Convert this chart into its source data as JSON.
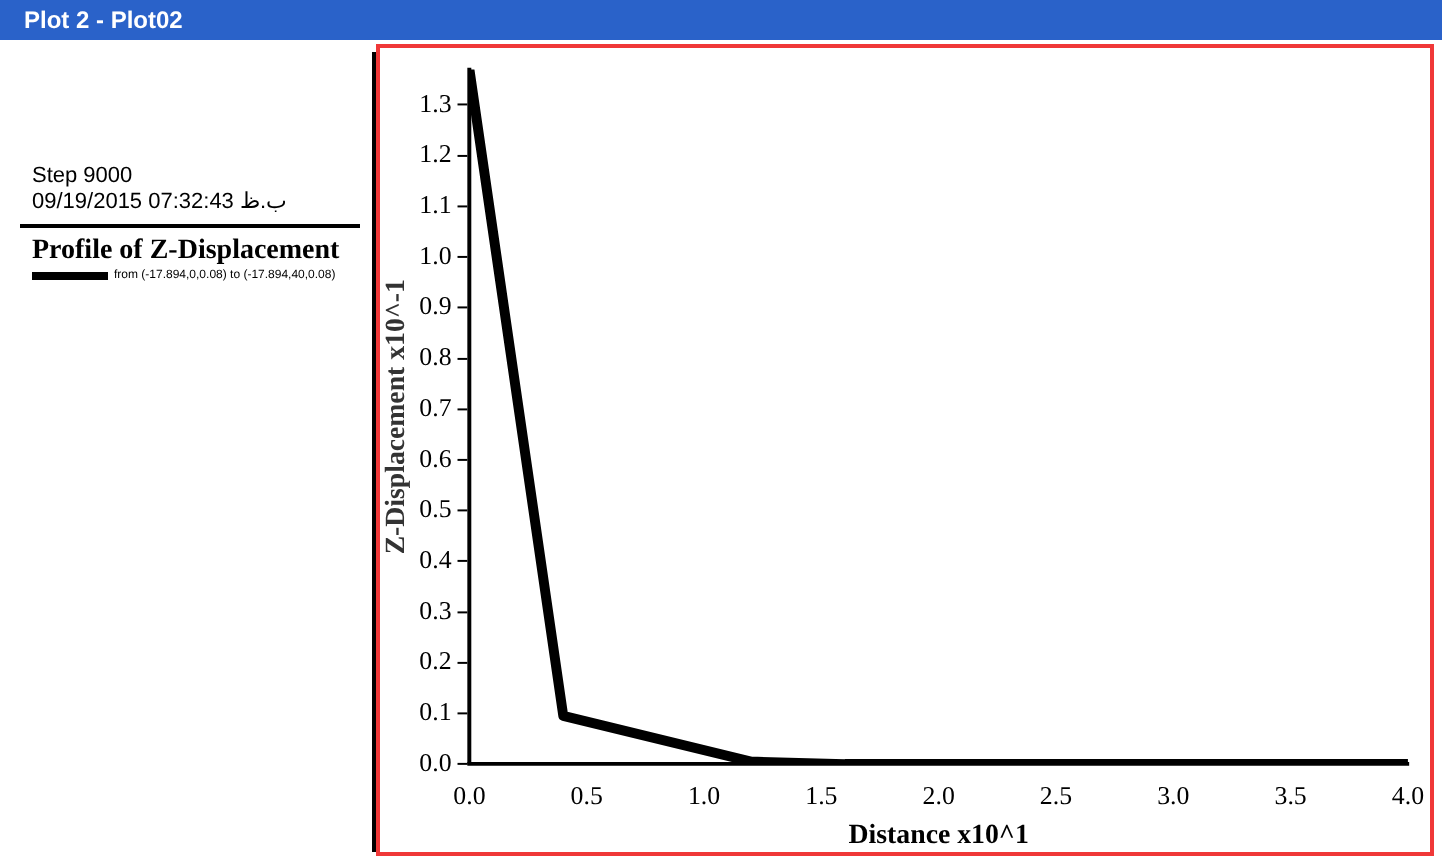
{
  "chart_data": {
    "type": "line",
    "title": "Plot 2 - Plot02",
    "xlabel": "Distance x10^1",
    "ylabel": "Z-Displacement x10^-1",
    "legend_title": "Profile of Z-Displacement",
    "annotations": [
      "Step 9000",
      "09/19/2015 07:32:43 ب.ظ"
    ],
    "x": [
      0,
      0.4,
      1.2,
      1.6,
      2.0,
      4.0
    ],
    "series": [
      {
        "name": "from (-17.894,0,0.08) to (-17.894,40,0.08)",
        "color": "#000000",
        "values": [
          1.37,
          0.095,
          0.005,
          0,
          0,
          0
        ]
      }
    ],
    "xlim": [
      0,
      4
    ],
    "xticks": [
      {
        "value": 0,
        "label": "0.0"
      },
      {
        "value": 0.5,
        "label": "0.5"
      },
      {
        "value": 1,
        "label": "1.0"
      },
      {
        "value": 1.5,
        "label": "1.5"
      },
      {
        "value": 2,
        "label": "2.0"
      },
      {
        "value": 2.5,
        "label": "2.5"
      },
      {
        "value": 3,
        "label": "3.0"
      },
      {
        "value": 3.5,
        "label": "3.5"
      },
      {
        "value": 4,
        "label": "4.0"
      }
    ],
    "ylim": [
      0,
      1.37
    ],
    "yticks": [
      {
        "value": 0,
        "label": "0.0"
      },
      {
        "value": 0.1,
        "label": "0.1"
      },
      {
        "value": 0.2,
        "label": "0.2"
      },
      {
        "value": 0.3,
        "label": "0.3"
      },
      {
        "value": 0.4,
        "label": "0.4"
      },
      {
        "value": 0.5,
        "label": "0.5"
      },
      {
        "value": 0.6,
        "label": "0.6"
      },
      {
        "value": 0.7,
        "label": "0.7"
      },
      {
        "value": 0.8,
        "label": "0.8"
      },
      {
        "value": 0.9,
        "label": "0.9"
      },
      {
        "value": 1,
        "label": "1.0"
      },
      {
        "value": 1.1,
        "label": "1.1"
      },
      {
        "value": 1.2,
        "label": "1.2"
      },
      {
        "value": 1.3,
        "label": "1.3"
      }
    ],
    "grid": false,
    "legend": "left",
    "marker": "none",
    "line_style": "solid"
  }
}
